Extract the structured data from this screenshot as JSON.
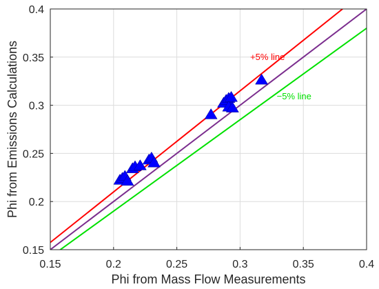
{
  "chart_data": {
    "type": "scatter",
    "title": "",
    "xlabel": "Phi from Mass Flow Measurements",
    "ylabel": "Phi from Emissions Calculations",
    "xlim": [
      0.15,
      0.4
    ],
    "ylim": [
      0.15,
      0.4
    ],
    "xticks": [
      0.15,
      0.2,
      0.25,
      0.3,
      0.35,
      0.4
    ],
    "yticks": [
      0.15,
      0.2,
      0.25,
      0.3,
      0.35,
      0.4
    ],
    "xtick_labels": [
      "0.15",
      "0.2",
      "0.25",
      "0.3",
      "0.35",
      "0.4"
    ],
    "ytick_labels": [
      "0.15",
      "0.2",
      "0.25",
      "0.3",
      "0.35",
      "0.4"
    ],
    "grid": true,
    "marker": "triangle",
    "marker_color": "#0000ff",
    "points": [
      {
        "x": 0.205,
        "y": 0.222
      },
      {
        "x": 0.207,
        "y": 0.224
      },
      {
        "x": 0.209,
        "y": 0.226
      },
      {
        "x": 0.211,
        "y": 0.221
      },
      {
        "x": 0.215,
        "y": 0.234
      },
      {
        "x": 0.217,
        "y": 0.236
      },
      {
        "x": 0.221,
        "y": 0.237
      },
      {
        "x": 0.228,
        "y": 0.243
      },
      {
        "x": 0.23,
        "y": 0.245
      },
      {
        "x": 0.232,
        "y": 0.24
      },
      {
        "x": 0.277,
        "y": 0.29
      },
      {
        "x": 0.287,
        "y": 0.302
      },
      {
        "x": 0.289,
        "y": 0.305
      },
      {
        "x": 0.291,
        "y": 0.307
      },
      {
        "x": 0.293,
        "y": 0.308
      },
      {
        "x": 0.291,
        "y": 0.298
      },
      {
        "x": 0.294,
        "y": 0.297
      },
      {
        "x": 0.317,
        "y": 0.326
      }
    ],
    "lines": [
      {
        "label": "",
        "color": "#7b2d8e",
        "x": [
          0.15,
          0.4
        ],
        "y": [
          0.15,
          0.4
        ]
      },
      {
        "label": "+5% line",
        "color": "#ff0000",
        "x": [
          0.15,
          0.381
        ],
        "y": [
          0.1575,
          0.4
        ]
      },
      {
        "label": "−5% line",
        "color": "#00e000",
        "x": [
          0.15,
          0.4
        ],
        "y": [
          0.1425,
          0.38
        ]
      }
    ],
    "annotations": [
      {
        "text": "+5% line",
        "color": "#ff0000",
        "x": 0.308,
        "y": 0.347
      },
      {
        "text": "−5% line",
        "color": "#00e000",
        "x": 0.329,
        "y": 0.306
      }
    ]
  }
}
